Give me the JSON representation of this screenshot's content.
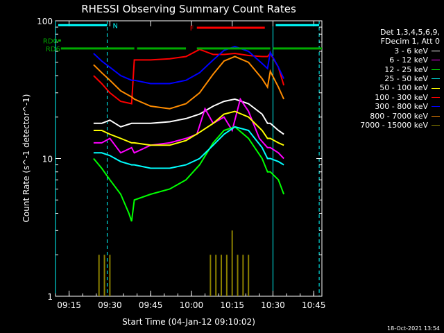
{
  "chart_data": {
    "type": "line",
    "title": "RHESSI Observing Summary Count Rates",
    "xlabel": "Start Time (04-Jan-12 09:10:02)",
    "ylabel": "Count Rate (s^-1 detector^-1)",
    "x_unit": "time (HH:MM)",
    "xlim": [
      "09:10",
      "10:48"
    ],
    "ylim": [
      1,
      100
    ],
    "yscale": "log",
    "x_ticks": [
      "09:15",
      "09:30",
      "09:45",
      "10:00",
      "10:15",
      "10:30",
      "10:45"
    ],
    "y_ticks": [
      "1",
      "10",
      "100"
    ],
    "grid": false,
    "legend_position": "right",
    "legend_header": [
      "Det 1,3,4,5,6,9,",
      "FDecim 1, Att 0"
    ],
    "series": [
      {
        "name": "3 - 6 keV",
        "color": "#ffffff",
        "x": [
          "09:24",
          "09:27",
          "09:30",
          "09:34",
          "09:38",
          "09:39",
          "09:45",
          "09:52",
          "09:58",
          "10:03",
          "10:08",
          "10:12",
          "10:16",
          "10:21",
          "10:26",
          "10:28",
          "10:29",
          "10:32",
          "10:34"
        ],
        "y": [
          18,
          18,
          19,
          17,
          18,
          18,
          18,
          18.5,
          19.5,
          21,
          24,
          26,
          27,
          25,
          21,
          18,
          18,
          16,
          15
        ]
      },
      {
        "name": "6 - 12 keV",
        "color": "#ff00ff",
        "x": [
          "09:24",
          "09:27",
          "09:30",
          "09:34",
          "09:38",
          "09:39",
          "09:45",
          "09:52",
          "09:58",
          "10:02",
          "10:05",
          "10:08",
          "10:12",
          "10:15",
          "10:18",
          "10:21",
          "10:25",
          "10:28",
          "10:29",
          "10:32",
          "10:34"
        ],
        "y": [
          13,
          13,
          14,
          11,
          12,
          11,
          12.5,
          13,
          14,
          15,
          23,
          18,
          20,
          16,
          27,
          22,
          14,
          12,
          12,
          11,
          10
        ]
      },
      {
        "name": "12 - 25 keV",
        "color": "#00ff00",
        "x": [
          "09:24",
          "09:27",
          "09:30",
          "09:34",
          "09:37",
          "09:38",
          "09:39",
          "09:45",
          "09:52",
          "09:58",
          "10:03",
          "10:08",
          "10:12",
          "10:16",
          "10:21",
          "10:26",
          "10:28",
          "10:29",
          "10:32",
          "10:34"
        ],
        "y": [
          10,
          8.5,
          7,
          5.5,
          4,
          3.5,
          5,
          5.5,
          6,
          7,
          9,
          13,
          16,
          17,
          14,
          10,
          8,
          8,
          7,
          5.5
        ]
      },
      {
        "name": "25 - 50 keV",
        "color": "#00ffff",
        "x": [
          "09:24",
          "09:27",
          "09:30",
          "09:34",
          "09:38",
          "09:39",
          "09:45",
          "09:52",
          "09:58",
          "10:03",
          "10:08",
          "10:12",
          "10:16",
          "10:21",
          "10:26",
          "10:28",
          "10:29",
          "10:32",
          "10:34"
        ],
        "y": [
          11,
          11,
          10.5,
          9.5,
          9,
          9,
          8.5,
          8.5,
          9,
          10,
          12.5,
          15,
          17,
          16,
          12,
          10,
          10,
          9.5,
          9
        ]
      },
      {
        "name": "50 - 100 keV",
        "color": "#ffff00",
        "x": [
          "09:24",
          "09:27",
          "09:30",
          "09:34",
          "09:38",
          "09:39",
          "09:45",
          "09:52",
          "09:58",
          "10:03",
          "10:08",
          "10:12",
          "10:16",
          "10:21",
          "10:26",
          "10:28",
          "10:29",
          "10:32",
          "10:34"
        ],
        "y": [
          16,
          16,
          15,
          14,
          13,
          13,
          12.5,
          12.5,
          13.5,
          15.5,
          18,
          21,
          22,
          20,
          16,
          14,
          14,
          13,
          12.5
        ]
      },
      {
        "name": "100 - 300 keV",
        "color": "#ff0000",
        "x": [
          "09:24",
          "09:27",
          "09:30",
          "09:34",
          "09:38",
          "09:39",
          "09:45",
          "09:52",
          "09:58",
          "10:03",
          "10:08",
          "10:12",
          "10:16",
          "10:21",
          "10:26",
          "10:28",
          "10:29",
          "10:32",
          "10:34"
        ],
        "y": [
          40,
          35,
          30,
          26,
          25,
          52,
          52,
          53,
          55,
          62,
          57,
          57,
          58,
          56,
          55,
          55,
          58,
          46,
          34
        ]
      },
      {
        "name": "300 - 800 keV",
        "color": "#0000ff",
        "x": [
          "09:24",
          "09:27",
          "09:30",
          "09:34",
          "09:38",
          "09:39",
          "09:45",
          "09:52",
          "09:58",
          "10:03",
          "10:08",
          "10:12",
          "10:16",
          "10:21",
          "10:26",
          "10:28",
          "10:29",
          "10:32",
          "10:34"
        ],
        "y": [
          58,
          51,
          46,
          40,
          37,
          37,
          35,
          35,
          37,
          42,
          52,
          61,
          65,
          60,
          49,
          45,
          59,
          46,
          38
        ]
      },
      {
        "name": "800 - 7000 keV",
        "color": "#ff8c00",
        "x": [
          "09:24",
          "09:27",
          "09:30",
          "09:34",
          "09:38",
          "09:39",
          "09:45",
          "09:52",
          "09:58",
          "10:03",
          "10:08",
          "10:12",
          "10:16",
          "10:21",
          "10:26",
          "10:28",
          "10:29",
          "10:32",
          "10:34"
        ],
        "y": [
          48,
          42,
          37,
          31,
          28,
          27,
          24,
          23,
          25,
          30,
          41,
          51,
          55,
          50,
          38,
          33,
          43,
          33,
          27
        ]
      },
      {
        "name": "7000 - 15000 keV",
        "color": "#8b8000",
        "x": [
          "09:24",
          "09:26",
          "09:27",
          "09:28",
          "09:29",
          "09:30",
          "10:07",
          "10:09",
          "10:11",
          "10:12",
          "10:13",
          "10:15",
          "10:17",
          "10:19",
          "10:21",
          "10:23"
        ],
        "y": [
          1,
          2,
          1,
          2,
          1,
          2,
          2,
          2,
          2,
          1,
          2,
          3,
          2,
          2,
          2,
          1
        ]
      }
    ],
    "annotations": [
      {
        "label": "N",
        "color": "#00ffff",
        "y": 93,
        "x_start": "09:11",
        "x_end": "09:29"
      },
      {
        "label": "",
        "color": "#00ffff",
        "y": 93,
        "x_start": "10:31",
        "x_end": "10:47"
      },
      {
        "label": "F",
        "color": "#ff0000",
        "y": 89,
        "x_start": "10:02",
        "x_end": "10:27"
      },
      {
        "label": "RD0",
        "color": "#00aa00",
        "y": 72,
        "x_start": "09:11",
        "x_end": "09:12"
      },
      {
        "label": "RD6",
        "color": "#00aa00",
        "y": 63,
        "x_start": "09:12",
        "x_end": "09:39",
        "segments": [
          [
            "09:12",
            "09:39"
          ],
          [
            "09:40",
            "09:58"
          ],
          [
            "10:02",
            "10:29"
          ],
          [
            "10:30",
            "10:48"
          ]
        ]
      }
    ],
    "vertical_markers": [
      {
        "x": "09:10",
        "color": "#00ffff",
        "style": "solid"
      },
      {
        "x": "09:29",
        "color": "#00ffff",
        "style": "dashed"
      },
      {
        "x": "10:30",
        "color": "#00ffff",
        "style": "solid"
      },
      {
        "x": "10:47",
        "color": "#00ffff",
        "style": "dashed"
      }
    ]
  },
  "footer": {
    "date": "18-Oct-2021 13:54"
  }
}
